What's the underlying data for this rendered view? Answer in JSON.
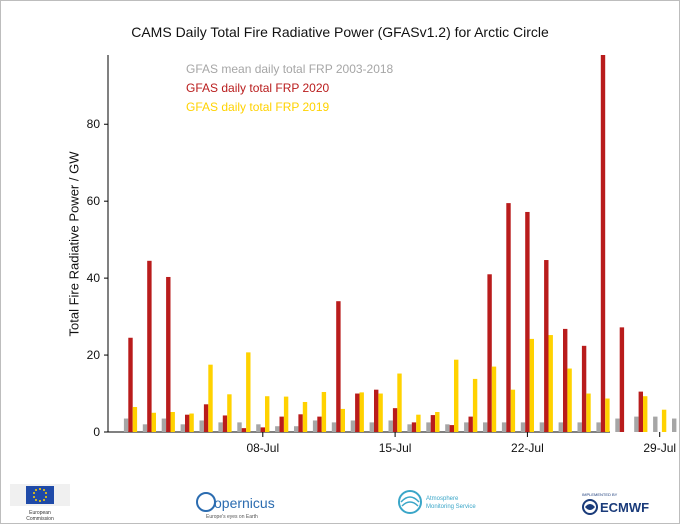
{
  "chart_data": {
    "type": "bar",
    "title": "CAMS Daily Total Fire Radiative Power (GFASv1.2) for Arctic Circle",
    "ylabel": "Total Fire Radiative Power / GW",
    "xlabel": "",
    "ylim": [
      0,
      98
    ],
    "yticks": [
      0,
      20,
      40,
      60,
      80
    ],
    "xticks": [
      {
        "label": "08-Jul",
        "day": 8
      },
      {
        "label": "15-Jul",
        "day": 15
      },
      {
        "label": "22-Jul",
        "day": 22
      },
      {
        "label": "29-Jul",
        "day": 29
      }
    ],
    "days": [
      1,
      2,
      3,
      4,
      5,
      6,
      7,
      8,
      9,
      10,
      11,
      12,
      13,
      14,
      15,
      16,
      17,
      18,
      19,
      20,
      21,
      22,
      23,
      24,
      25,
      26,
      27,
      28,
      29,
      30,
      31
    ],
    "grid": false,
    "legend_position": "top-left",
    "series": [
      {
        "name": "GFAS mean daily total FRP 2003-2018",
        "color": "#a6a6a6",
        "values": [
          3.5,
          2,
          3.5,
          2,
          3,
          2.5,
          2.5,
          2,
          1.5,
          1.5,
          3,
          2.5,
          3,
          2.5,
          3,
          2,
          2.5,
          2,
          2.5,
          2.5,
          2.5,
          2.5,
          2.5,
          2.5,
          2.5,
          2.5,
          3.5,
          4,
          4,
          3.5,
          2.5
        ]
      },
      {
        "name": "GFAS daily total FRP 2020",
        "color": "#b91c1c",
        "values": [
          24.5,
          44.5,
          40.3,
          4.5,
          7.2,
          4.3,
          1.0,
          1.2,
          4.0,
          4.6,
          4.0,
          34,
          10,
          11,
          6.2,
          2.5,
          4.4,
          1.8,
          4.0,
          41,
          59.5,
          57.2,
          44.7,
          26.8,
          22.4,
          98,
          27.2,
          10.5,
          null,
          null,
          null
        ]
      },
      {
        "name": "GFAS daily total FRP 2019",
        "color": "#ffd200",
        "values": [
          6.5,
          5,
          5.2,
          4.8,
          17.5,
          9.8,
          20.7,
          9.3,
          9.2,
          7.8,
          10.4,
          6,
          10.3,
          10,
          15.2,
          4.5,
          5.2,
          18.8,
          13.8,
          17,
          11,
          24.2,
          25.2,
          16.5,
          10,
          8.7,
          null,
          9.3,
          5.8,
          5.8,
          9
        ]
      }
    ]
  },
  "footer": {
    "eu_label_1": "European",
    "eu_label_2": "Commission",
    "copernicus": "opernicus",
    "copernicus_sub": "Europe's eyes on Earth",
    "ams_1": "Atmosphere",
    "ams_2": "Monitoring Service",
    "ecmwf_small": "IMPLEMENTED BY",
    "ecmwf": "ECMWF"
  }
}
